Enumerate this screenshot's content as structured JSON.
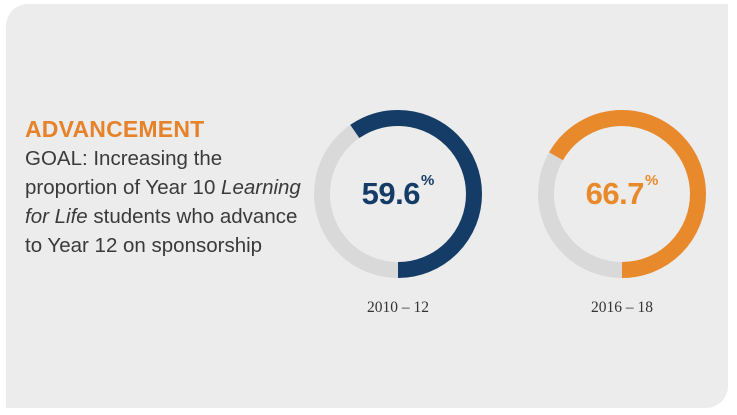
{
  "heading": "ADVANCEMENT",
  "goal": {
    "before": "GOAL: Increasing the proportion of Year 10 ",
    "emphasis": "Learning for Life",
    "after": " students who advance to Year 12 on sponsorship"
  },
  "colors": {
    "heading": "#e5822a",
    "series_blue": "#153c66",
    "series_orange": "#e8892b",
    "track": "#d9d9d9"
  },
  "chart_data": [
    {
      "type": "pie",
      "variant": "donut",
      "category": "2010 – 12",
      "value": 59.6,
      "label": "59.6",
      "unit": "%",
      "max": 100,
      "color": "#153c66"
    },
    {
      "type": "pie",
      "variant": "donut",
      "category": "2016 – 18",
      "value": 66.7,
      "label": "66.7",
      "unit": "%",
      "max": 100,
      "color": "#e8892b"
    }
  ]
}
